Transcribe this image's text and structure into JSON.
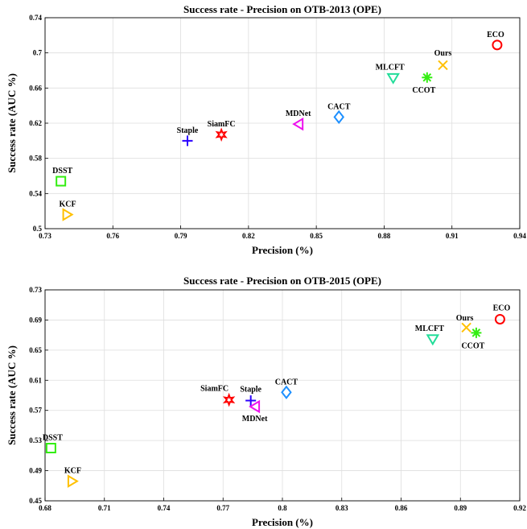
{
  "chart_data": [
    {
      "type": "scatter",
      "title": "Success rate - Precision on OTB-2013 (OPE)",
      "xlabel": "Precision (%)",
      "ylabel": "Success rate (AUC %)",
      "xlim": [
        0.73,
        0.94
      ],
      "ylim": [
        0.5,
        0.74
      ],
      "xticks": [
        "0.73",
        "0.76",
        "0.79",
        "0.82",
        "0.85",
        "0.88",
        "0.91",
        "0.94"
      ],
      "yticks": [
        "0.5",
        "0.54",
        "0.58",
        "0.62",
        "0.66",
        "0.7",
        "0.74"
      ],
      "grid": true,
      "points": [
        {
          "label": "ECO",
          "x": 0.93,
          "y": 0.709,
          "marker": "circle",
          "color": "#ff0000",
          "label_pos": "above-left"
        },
        {
          "label": "Ours",
          "x": 0.906,
          "y": 0.686,
          "marker": "x",
          "color": "#ffc000",
          "label_pos": "above"
        },
        {
          "label": "CCOT",
          "x": 0.899,
          "y": 0.672,
          "marker": "asterisk",
          "color": "#33ee11",
          "label_pos": "below-right"
        },
        {
          "label": "MLCFT",
          "x": 0.884,
          "y": 0.671,
          "marker": "triangle-down",
          "color": "#22dd99",
          "label_pos": "above-left"
        },
        {
          "label": "CACT",
          "x": 0.86,
          "y": 0.627,
          "marker": "diamond",
          "color": "#1e90ff",
          "label_pos": "above"
        },
        {
          "label": "MDNet",
          "x": 0.842,
          "y": 0.619,
          "marker": "triangle-left",
          "color": "#ee11ee",
          "label_pos": "above"
        },
        {
          "label": "SiamFC",
          "x": 0.808,
          "y": 0.607,
          "marker": "hexagram",
          "color": "#ff0000",
          "label_pos": "above"
        },
        {
          "label": "Staple",
          "x": 0.793,
          "y": 0.6,
          "marker": "plus",
          "color": "#2b00ff",
          "label_pos": "above"
        },
        {
          "label": "DSST",
          "x": 0.737,
          "y": 0.554,
          "marker": "square",
          "color": "#33ee11",
          "label_pos": "above"
        },
        {
          "label": "KCF",
          "x": 0.74,
          "y": 0.516,
          "marker": "triangle-right",
          "color": "#ffc000",
          "label_pos": "above"
        }
      ]
    },
    {
      "type": "scatter",
      "title": "Success rate - Precision on OTB-2015 (OPE)",
      "xlabel": "Precision (%)",
      "ylabel": "Success rate (AUC %)",
      "xlim": [
        0.68,
        0.92
      ],
      "ylim": [
        0.45,
        0.73
      ],
      "xticks": [
        "0.68",
        "0.71",
        "0.74",
        "0.77",
        "0.8",
        "0.83",
        "0.86",
        "0.89",
        "0.92"
      ],
      "yticks": [
        "0.45",
        "0.49",
        "0.53",
        "0.57",
        "0.61",
        "0.65",
        "0.69",
        "0.73"
      ],
      "grid": true,
      "points": [
        {
          "label": "ECO",
          "x": 0.91,
          "y": 0.691,
          "marker": "circle",
          "color": "#ff0000",
          "label_pos": "above-right"
        },
        {
          "label": "Ours",
          "x": 0.893,
          "y": 0.68,
          "marker": "x",
          "color": "#ffc000",
          "label_pos": "above-left"
        },
        {
          "label": "CCOT",
          "x": 0.898,
          "y": 0.673,
          "marker": "asterisk",
          "color": "#33ee11",
          "label_pos": "below-right"
        },
        {
          "label": "MLCFT",
          "x": 0.876,
          "y": 0.664,
          "marker": "triangle-down",
          "color": "#22dd99",
          "label_pos": "above-left"
        },
        {
          "label": "CACT",
          "x": 0.802,
          "y": 0.594,
          "marker": "diamond",
          "color": "#1e90ff",
          "label_pos": "above"
        },
        {
          "label": "Staple",
          "x": 0.784,
          "y": 0.583,
          "marker": "plus",
          "color": "#2b00ff",
          "label_pos": "above"
        },
        {
          "label": "SiamFC",
          "x": 0.773,
          "y": 0.584,
          "marker": "hexagram",
          "color": "#ff0000",
          "label_pos": "above-left"
        },
        {
          "label": "MDNet",
          "x": 0.786,
          "y": 0.575,
          "marker": "triangle-left",
          "color": "#ee11ee",
          "label_pos": "below"
        },
        {
          "label": "DSST",
          "x": 0.683,
          "y": 0.52,
          "marker": "square",
          "color": "#33ee11",
          "label_pos": "above-right"
        },
        {
          "label": "KCF",
          "x": 0.694,
          "y": 0.476,
          "marker": "triangle-right",
          "color": "#ffc000",
          "label_pos": "above"
        }
      ]
    }
  ]
}
